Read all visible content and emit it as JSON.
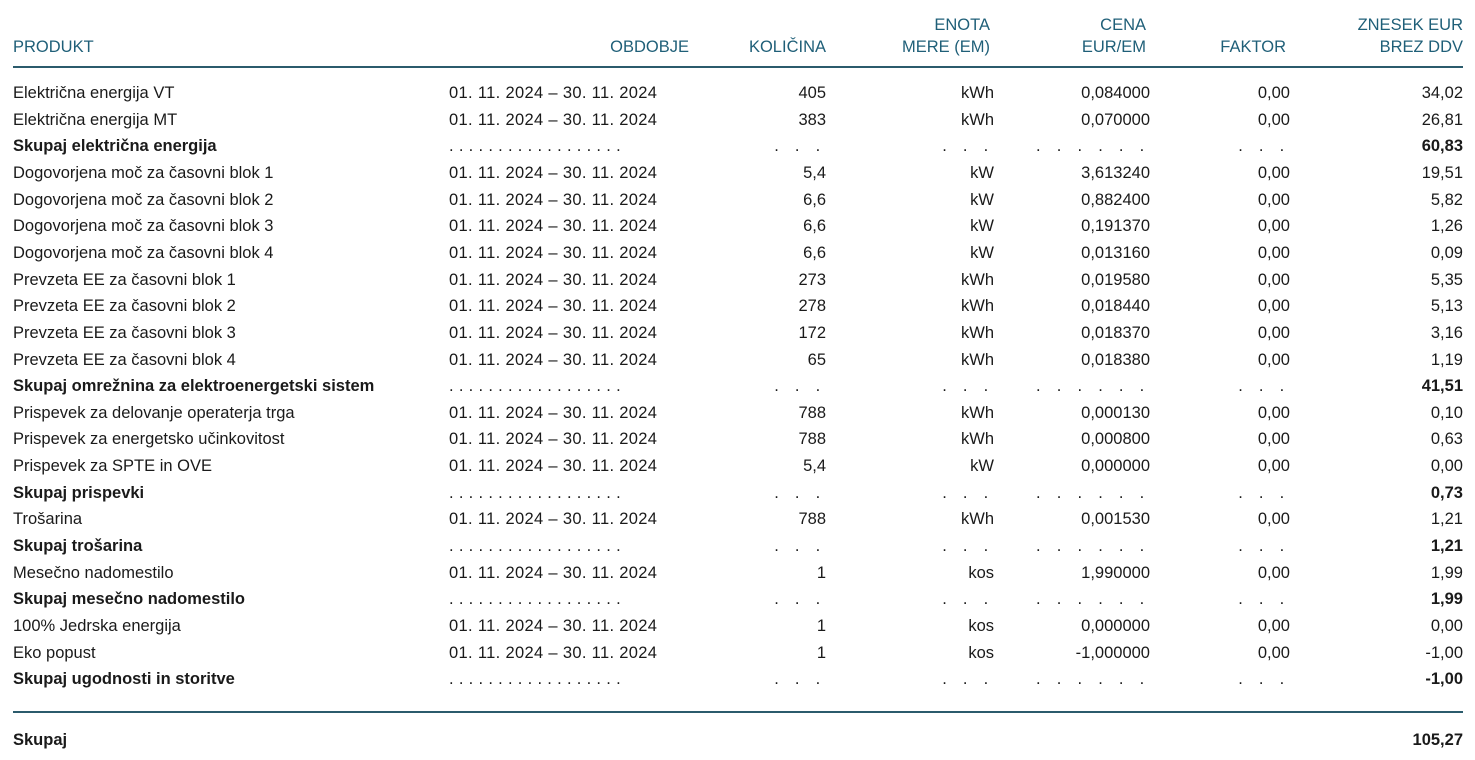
{
  "header": {
    "produkt": "PRODUKT",
    "obdobje": "OBDOBJE",
    "kolicina": "KOLIČINA",
    "enota_1": "ENOTA",
    "enota_2": "MERE (EM)",
    "cena_1": "CENA",
    "cena_2": "EUR/EM",
    "faktor": "FAKTOR",
    "znesek_1": "ZNESEK EUR",
    "znesek_2": "BREZ DDV"
  },
  "rows": [
    {
      "produkt": "Električna energija VT",
      "obdobje": "01. 11. 2024 – 30. 11. 2024",
      "kolicina": "405",
      "enota": "kWh",
      "cena": "0,084000",
      "faktor": "0,00",
      "znesek": "34,02",
      "subtotal": false
    },
    {
      "produkt": "Električna energija MT",
      "obdobje": "01. 11. 2024 – 30. 11. 2024",
      "kolicina": "383",
      "enota": "kWh",
      "cena": "0,070000",
      "faktor": "0,00",
      "znesek": "26,81",
      "subtotal": false
    },
    {
      "produkt": "Skupaj električna energija",
      "obdobje": ". . . . . . . . . . . . . . . . . .",
      "kolicina": ". . .",
      "enota": ". . .",
      "cena": ". . . . . .",
      "faktor": ". . .",
      "znesek": "60,83",
      "subtotal": true
    },
    {
      "produkt": "Dogovorjena moč za časovni blok 1",
      "obdobje": "01. 11. 2024 – 30. 11. 2024",
      "kolicina": "5,4",
      "enota": "kW",
      "cena": "3,613240",
      "faktor": "0,00",
      "znesek": "19,51",
      "subtotal": false
    },
    {
      "produkt": "Dogovorjena moč za časovni blok 2",
      "obdobje": "01. 11. 2024 – 30. 11. 2024",
      "kolicina": "6,6",
      "enota": "kW",
      "cena": "0,882400",
      "faktor": "0,00",
      "znesek": "5,82",
      "subtotal": false
    },
    {
      "produkt": "Dogovorjena moč za časovni blok 3",
      "obdobje": "01. 11. 2024 – 30. 11. 2024",
      "kolicina": "6,6",
      "enota": "kW",
      "cena": "0,191370",
      "faktor": "0,00",
      "znesek": "1,26",
      "subtotal": false
    },
    {
      "produkt": "Dogovorjena moč za časovni blok 4",
      "obdobje": "01. 11. 2024 – 30. 11. 2024",
      "kolicina": "6,6",
      "enota": "kW",
      "cena": "0,013160",
      "faktor": "0,00",
      "znesek": "0,09",
      "subtotal": false
    },
    {
      "produkt": "Prevzeta EE za časovni blok 1",
      "obdobje": "01. 11. 2024 – 30. 11. 2024",
      "kolicina": "273",
      "enota": "kWh",
      "cena": "0,019580",
      "faktor": "0,00",
      "znesek": "5,35",
      "subtotal": false
    },
    {
      "produkt": "Prevzeta EE za časovni blok 2",
      "obdobje": "01. 11. 2024 – 30. 11. 2024",
      "kolicina": "278",
      "enota": "kWh",
      "cena": "0,018440",
      "faktor": "0,00",
      "znesek": "5,13",
      "subtotal": false
    },
    {
      "produkt": "Prevzeta EE za časovni blok 3",
      "obdobje": "01. 11. 2024 – 30. 11. 2024",
      "kolicina": "172",
      "enota": "kWh",
      "cena": "0,018370",
      "faktor": "0,00",
      "znesek": "3,16",
      "subtotal": false
    },
    {
      "produkt": "Prevzeta EE za časovni blok 4",
      "obdobje": "01. 11. 2024 – 30. 11. 2024",
      "kolicina": "65",
      "enota": "kWh",
      "cena": "0,018380",
      "faktor": "0,00",
      "znesek": "1,19",
      "subtotal": false
    },
    {
      "produkt": "Skupaj omrežnina za elektroenergetski sistem",
      "obdobje": ". . . . . . . . . . . . . . . . . .",
      "kolicina": ". . .",
      "enota": ". . .",
      "cena": ". . . . . .",
      "faktor": ". . .",
      "znesek": "41,51",
      "subtotal": true
    },
    {
      "produkt": "Prispevek za delovanje operaterja trga",
      "obdobje": "01. 11. 2024 – 30. 11. 2024",
      "kolicina": "788",
      "enota": "kWh",
      "cena": "0,000130",
      "faktor": "0,00",
      "znesek": "0,10",
      "subtotal": false
    },
    {
      "produkt": "Prispevek za energetsko učinkovitost",
      "obdobje": "01. 11. 2024 – 30. 11. 2024",
      "kolicina": "788",
      "enota": "kWh",
      "cena": "0,000800",
      "faktor": "0,00",
      "znesek": "0,63",
      "subtotal": false
    },
    {
      "produkt": "Prispevek za SPTE in OVE",
      "obdobje": "01. 11. 2024 – 30. 11. 2024",
      "kolicina": "5,4",
      "enota": "kW",
      "cena": "0,000000",
      "faktor": "0,00",
      "znesek": "0,00",
      "subtotal": false
    },
    {
      "produkt": "Skupaj prispevki",
      "obdobje": ". . . . . . . . . . . . . . . . . .",
      "kolicina": ". . .",
      "enota": ". . .",
      "cena": ". . . . . .",
      "faktor": ". . .",
      "znesek": "0,73",
      "subtotal": true
    },
    {
      "produkt": "Trošarina",
      "obdobje": "01. 11. 2024 – 30. 11. 2024",
      "kolicina": "788",
      "enota": "kWh",
      "cena": "0,001530",
      "faktor": "0,00",
      "znesek": "1,21",
      "subtotal": false
    },
    {
      "produkt": "Skupaj trošarina",
      "obdobje": ". . . . . . . . . . . . . . . . . .",
      "kolicina": ". . .",
      "enota": ". . .",
      "cena": ". . . . . .",
      "faktor": ". . .",
      "znesek": "1,21",
      "subtotal": true
    },
    {
      "produkt": "Mesečno nadomestilo",
      "obdobje": "01. 11. 2024 – 30. 11. 2024",
      "kolicina": "1",
      "enota": "kos",
      "cena": "1,990000",
      "faktor": "0,00",
      "znesek": "1,99",
      "subtotal": false
    },
    {
      "produkt": "Skupaj mesečno nadomestilo",
      "obdobje": ". . . . . . . . . . . . . . . . . .",
      "kolicina": ". . .",
      "enota": ". . .",
      "cena": ". . . . . .",
      "faktor": ". . .",
      "znesek": "1,99",
      "subtotal": true
    },
    {
      "produkt": "100% Jedrska energija",
      "obdobje": "01. 11. 2024 – 30. 11. 2024",
      "kolicina": "1",
      "enota": "kos",
      "cena": "0,000000",
      "faktor": "0,00",
      "znesek": "0,00",
      "subtotal": false
    },
    {
      "produkt": "Eko popust",
      "obdobje": "01. 11. 2024 – 30. 11. 2024",
      "kolicina": "1",
      "enota": "kos",
      "cena": "-1,000000",
      "faktor": "0,00",
      "znesek": "-1,00",
      "subtotal": false
    },
    {
      "produkt": "Skupaj ugodnosti in storitve",
      "obdobje": ". . . . . . . . . . . . . . . . . .",
      "kolicina": ". . .",
      "enota": ". . .",
      "cena": ". . . . . .",
      "faktor": ". . .",
      "znesek": "-1,00",
      "subtotal": true
    }
  ],
  "total": {
    "label": "Skupaj",
    "value": "105,27"
  }
}
